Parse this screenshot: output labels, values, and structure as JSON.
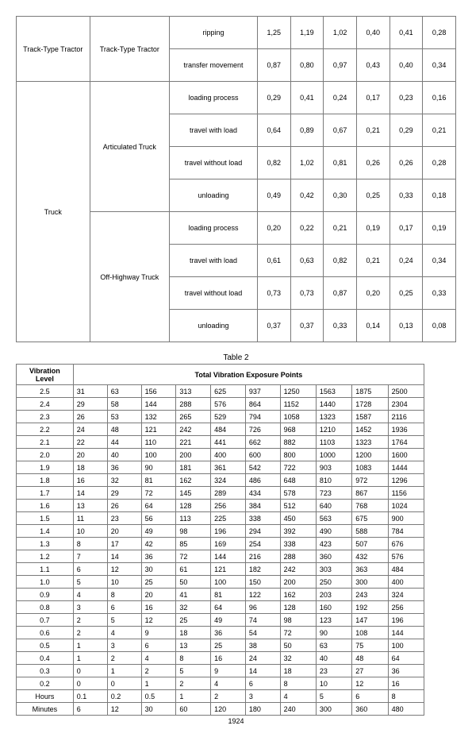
{
  "table1": {
    "groups": [
      {
        "category": "Track-Type Tractor",
        "subcategory": "Track-Type Tractor",
        "rows": [
          {
            "op": "ripping",
            "vals": [
              "1,25",
              "1,19",
              "1,02",
              "0,40",
              "0,41",
              "0,28"
            ]
          },
          {
            "op": "transfer movement",
            "vals": [
              "0,87",
              "0,80",
              "0,97",
              "0,43",
              "0,40",
              "0,34"
            ]
          }
        ]
      },
      {
        "category": "Truck",
        "subcategory": "Articulated Truck",
        "rows": [
          {
            "op": "loading process",
            "vals": [
              "0,29",
              "0,41",
              "0,24",
              "0,17",
              "0,23",
              "0,16"
            ]
          },
          {
            "op": "travel with load",
            "vals": [
              "0,64",
              "0,89",
              "0,67",
              "0,21",
              "0,29",
              "0,21"
            ]
          },
          {
            "op": "travel without load",
            "vals": [
              "0,82",
              "1,02",
              "0,81",
              "0,26",
              "0,26",
              "0,28"
            ]
          },
          {
            "op": "unloading",
            "vals": [
              "0,49",
              "0,42",
              "0,30",
              "0,25",
              "0,33",
              "0,18"
            ]
          }
        ]
      },
      {
        "category": null,
        "subcategory": "Off-Highway Truck",
        "rows": [
          {
            "op": "loading process",
            "vals": [
              "0,20",
              "0,22",
              "0,21",
              "0,19",
              "0,17",
              "0,19"
            ]
          },
          {
            "op": "travel with load",
            "vals": [
              "0,61",
              "0,63",
              "0,82",
              "0,21",
              "0,24",
              "0,34"
            ]
          },
          {
            "op": "travel without load",
            "vals": [
              "0,73",
              "0,73",
              "0,87",
              "0,20",
              "0,25",
              "0,33"
            ]
          },
          {
            "op": "unloading",
            "vals": [
              "0,37",
              "0,37",
              "0,33",
              "0,14",
              "0,13",
              "0,08"
            ]
          }
        ]
      }
    ]
  },
  "table2": {
    "caption": "Table 2",
    "header_left": "Vibration Level",
    "header_right": "Total Vibration Exposure Points",
    "rows": [
      {
        "lvl": "2.5",
        "v": [
          "31",
          "63",
          "156",
          "313",
          "625",
          "937",
          "1250",
          "1563",
          "1875",
          "2500"
        ]
      },
      {
        "lvl": "2.4",
        "v": [
          "29",
          "58",
          "144",
          "288",
          "576",
          "864",
          "1152",
          "1440",
          "1728",
          "2304"
        ]
      },
      {
        "lvl": "2.3",
        "v": [
          "26",
          "53",
          "132",
          "265",
          "529",
          "794",
          "1058",
          "1323",
          "1587",
          "2116"
        ]
      },
      {
        "lvl": "2.2",
        "v": [
          "24",
          "48",
          "121",
          "242",
          "484",
          "726",
          "968",
          "1210",
          "1452",
          "1936"
        ]
      },
      {
        "lvl": "2.1",
        "v": [
          "22",
          "44",
          "110",
          "221",
          "441",
          "662",
          "882",
          "1103",
          "1323",
          "1764"
        ]
      },
      {
        "lvl": "2.0",
        "v": [
          "20",
          "40",
          "100",
          "200",
          "400",
          "600",
          "800",
          "1000",
          "1200",
          "1600"
        ]
      },
      {
        "lvl": "1.9",
        "v": [
          "18",
          "36",
          "90",
          "181",
          "361",
          "542",
          "722",
          "903",
          "1083",
          "1444"
        ]
      },
      {
        "lvl": "1.8",
        "v": [
          "16",
          "32",
          "81",
          "162",
          "324",
          "486",
          "648",
          "810",
          "972",
          "1296"
        ]
      },
      {
        "lvl": "1.7",
        "v": [
          "14",
          "29",
          "72",
          "145",
          "289",
          "434",
          "578",
          "723",
          "867",
          "1156"
        ]
      },
      {
        "lvl": "1.6",
        "v": [
          "13",
          "26",
          "64",
          "128",
          "256",
          "384",
          "512",
          "640",
          "768",
          "1024"
        ]
      },
      {
        "lvl": "1.5",
        "v": [
          "11",
          "23",
          "56",
          "113",
          "225",
          "338",
          "450",
          "563",
          "675",
          "900"
        ]
      },
      {
        "lvl": "1.4",
        "v": [
          "10",
          "20",
          "49",
          "98",
          "196",
          "294",
          "392",
          "490",
          "588",
          "784"
        ]
      },
      {
        "lvl": "1.3",
        "v": [
          "8",
          "17",
          "42",
          "85",
          "169",
          "254",
          "338",
          "423",
          "507",
          "676"
        ]
      },
      {
        "lvl": "1.2",
        "v": [
          "7",
          "14",
          "36",
          "72",
          "144",
          "216",
          "288",
          "360",
          "432",
          "576"
        ]
      },
      {
        "lvl": "1.1",
        "v": [
          "6",
          "12",
          "30",
          "61",
          "121",
          "182",
          "242",
          "303",
          "363",
          "484"
        ]
      },
      {
        "lvl": "1.0",
        "v": [
          "5",
          "10",
          "25",
          "50",
          "100",
          "150",
          "200",
          "250",
          "300",
          "400"
        ]
      },
      {
        "lvl": "0.9",
        "v": [
          "4",
          "8",
          "20",
          "41",
          "81",
          "122",
          "162",
          "203",
          "243",
          "324"
        ]
      },
      {
        "lvl": "0.8",
        "v": [
          "3",
          "6",
          "16",
          "32",
          "64",
          "96",
          "128",
          "160",
          "192",
          "256"
        ]
      },
      {
        "lvl": "0.7",
        "v": [
          "2",
          "5",
          "12",
          "25",
          "49",
          "74",
          "98",
          "123",
          "147",
          "196"
        ]
      },
      {
        "lvl": "0.6",
        "v": [
          "2",
          "4",
          "9",
          "18",
          "36",
          "54",
          "72",
          "90",
          "108",
          "144"
        ]
      },
      {
        "lvl": "0.5",
        "v": [
          "1",
          "3",
          "6",
          "13",
          "25",
          "38",
          "50",
          "63",
          "75",
          "100"
        ]
      },
      {
        "lvl": "0.4",
        "v": [
          "1",
          "2",
          "4",
          "8",
          "16",
          "24",
          "32",
          "40",
          "48",
          "64"
        ]
      },
      {
        "lvl": "0.3",
        "v": [
          "0",
          "1",
          "2",
          "5",
          "9",
          "14",
          "18",
          "23",
          "27",
          "36"
        ]
      },
      {
        "lvl": "0.2",
        "v": [
          "0",
          "0",
          "1",
          "2",
          "4",
          "6",
          "8",
          "10",
          "12",
          "16"
        ]
      },
      {
        "lvl": "Hours",
        "v": [
          "0.1",
          "0.2",
          "0.5",
          "1",
          "2",
          "3",
          "4",
          "5",
          "6",
          "8"
        ]
      },
      {
        "lvl": "Minutes",
        "v": [
          "6",
          "12",
          "30",
          "60",
          "120",
          "180",
          "240",
          "300",
          "360",
          "480"
        ]
      }
    ]
  },
  "page_number": "1924"
}
